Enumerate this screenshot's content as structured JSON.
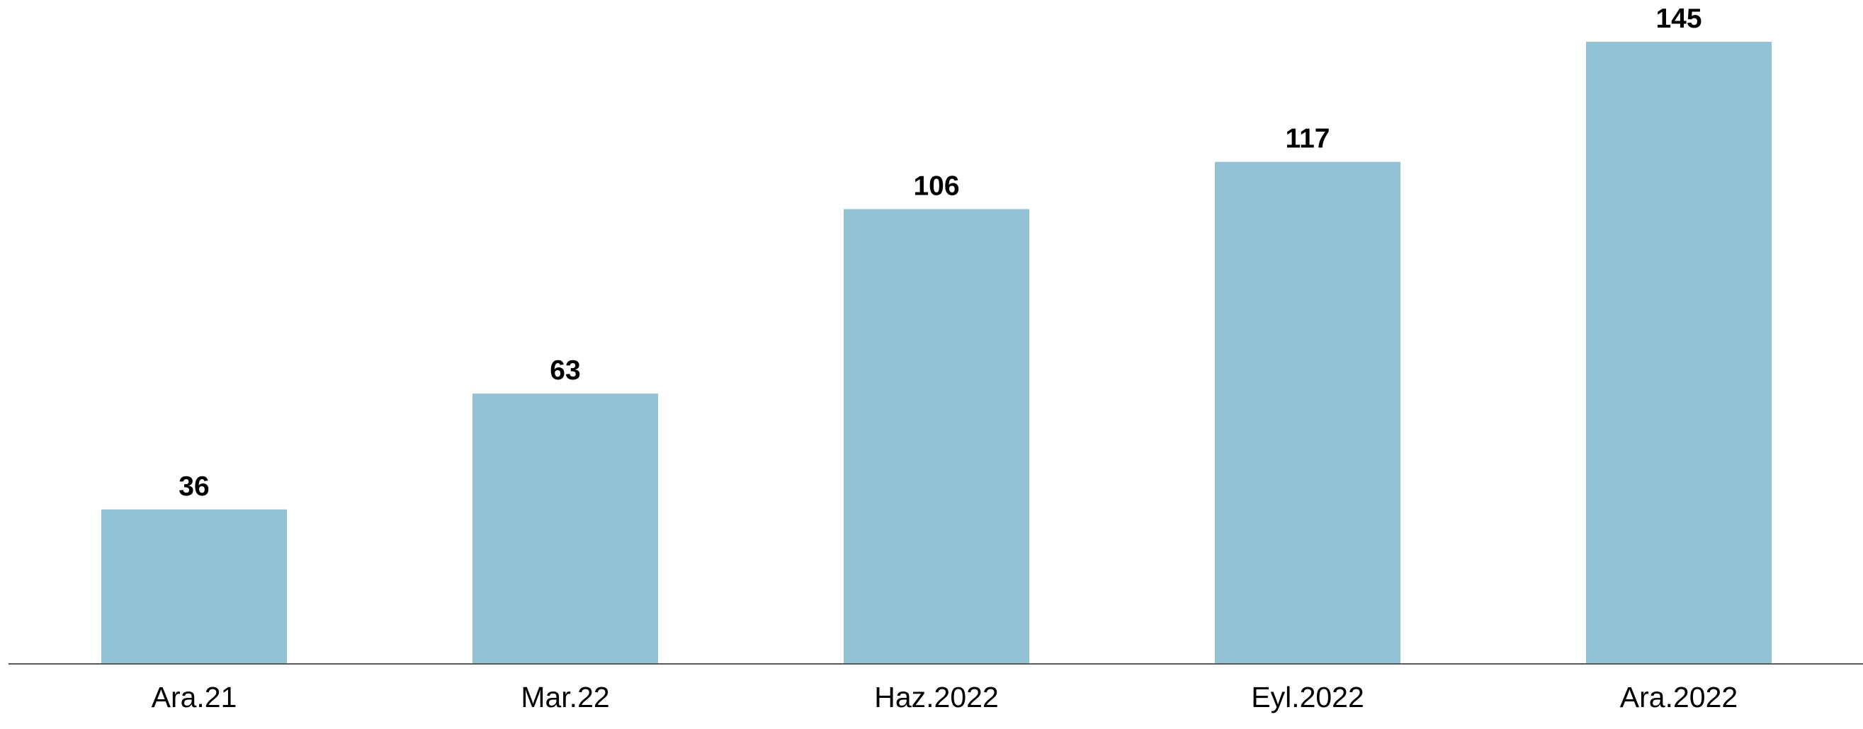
{
  "chart_data": {
    "type": "bar",
    "title": "",
    "xlabel": "",
    "ylabel": "",
    "categories": [
      "Ara.21",
      "Mar.22",
      "Haz.2022",
      "Eyl.2022",
      "Ara.2022"
    ],
    "values": [
      36,
      63,
      106,
      117,
      145
    ],
    "data_labels": [
      "36",
      "63",
      "106",
      "117",
      "145"
    ],
    "ylim": [
      0,
      145
    ],
    "grid": false,
    "legend": "none",
    "bar_color": "#93C2D4",
    "axis_color": "#595959"
  }
}
